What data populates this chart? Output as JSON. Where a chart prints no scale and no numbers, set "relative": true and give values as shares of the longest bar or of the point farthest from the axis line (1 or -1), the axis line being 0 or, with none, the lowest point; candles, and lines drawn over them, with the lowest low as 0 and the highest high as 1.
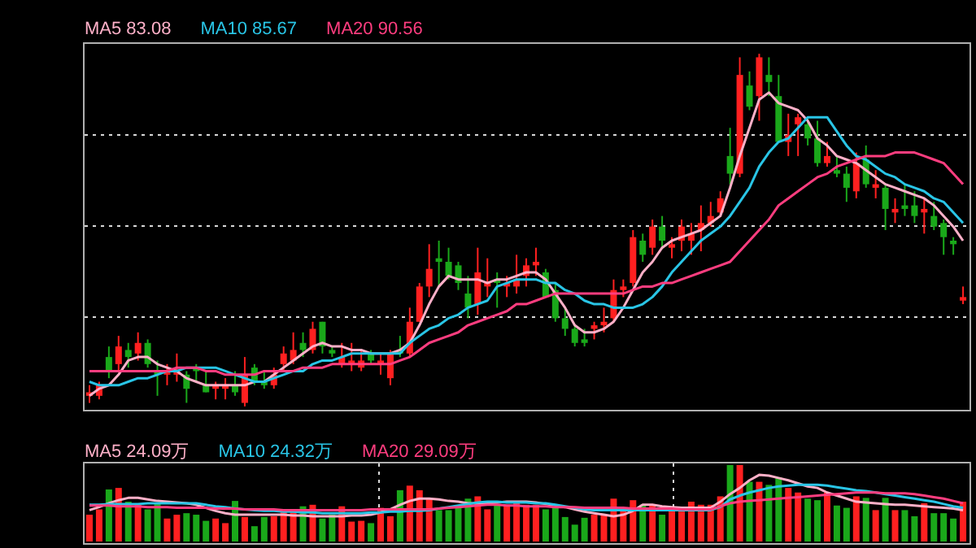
{
  "chart_data": [
    {
      "type": "candlestick",
      "relative": true,
      "tick_labels": false,
      "grid": "y",
      "legend": "top left",
      "categories": [
        null,
        null,
        null,
        null,
        null,
        null,
        null,
        null,
        null,
        null,
        null,
        null,
        null,
        null,
        null,
        null,
        null,
        null,
        null,
        null,
        null,
        null,
        null,
        null,
        null,
        null,
        null,
        null,
        null,
        null,
        null,
        null,
        null,
        null,
        null,
        null,
        null,
        null,
        null,
        null,
        null,
        null,
        null,
        null,
        null,
        null,
        null,
        null,
        null,
        null,
        null,
        null,
        null,
        null,
        null,
        null,
        null,
        null,
        null,
        null,
        null,
        null,
        null,
        null,
        null,
        null,
        null,
        null,
        null,
        null,
        null,
        null,
        null,
        null,
        null,
        null,
        null,
        null,
        null,
        null,
        null,
        null,
        null,
        null,
        null,
        null,
        null,
        null,
        null,
        null,
        null
      ],
      "ohlc": [
        [
          0.03,
          0.06,
          0.01,
          0.04
        ],
        [
          0.03,
          0.07,
          0.02,
          0.06
        ],
        [
          0.14,
          0.17,
          0.08,
          0.1
        ],
        [
          0.12,
          0.2,
          0.1,
          0.17
        ],
        [
          0.16,
          0.18,
          0.11,
          0.14
        ],
        [
          0.15,
          0.21,
          0.13,
          0.18
        ],
        [
          0.18,
          0.19,
          0.11,
          0.12
        ],
        [
          0.1,
          0.13,
          0.03,
          0.09
        ],
        [
          0.09,
          0.12,
          0.06,
          0.1
        ],
        [
          0.09,
          0.15,
          0.07,
          0.1
        ],
        [
          0.09,
          0.1,
          0.01,
          0.05
        ],
        [
          0.11,
          0.12,
          0.07,
          0.1
        ],
        [
          0.06,
          0.1,
          0.04,
          0.04
        ],
        [
          0.05,
          0.07,
          0.02,
          0.06
        ],
        [
          0.05,
          0.08,
          0.02,
          0.06
        ],
        [
          0.06,
          0.1,
          0.03,
          0.04
        ],
        [
          0.01,
          0.14,
          0,
          0.09
        ],
        [
          0.11,
          0.12,
          0.06,
          0.07
        ],
        [
          0.07,
          0.1,
          0.05,
          0.06
        ],
        [
          0.06,
          0.11,
          0.05,
          0.09
        ],
        [
          0.12,
          0.17,
          0.1,
          0.15
        ],
        [
          0.13,
          0.21,
          0.12,
          0.16
        ],
        [
          0.18,
          0.21,
          0.14,
          0.16
        ],
        [
          0.16,
          0.24,
          0.15,
          0.22
        ],
        [
          0.24,
          0.24,
          0.15,
          0.17
        ],
        [
          0.16,
          0.17,
          0.14,
          0.15
        ],
        [
          0.12,
          0.18,
          0.11,
          0.14
        ],
        [
          0.12,
          0.18,
          0.1,
          0.13
        ],
        [
          0.11,
          0.16,
          0.1,
          0.13
        ],
        [
          0.15,
          0.16,
          0.12,
          0.13
        ],
        [
          0.12,
          0.15,
          0.09,
          0.13
        ],
        [
          0.08,
          0.16,
          0.06,
          0.15
        ],
        [
          0.16,
          0.2,
          0.14,
          0.15
        ],
        [
          0.15,
          0.28,
          0.14,
          0.24
        ],
        [
          0.24,
          0.35,
          0.24,
          0.34
        ],
        [
          0.34,
          0.46,
          0.31,
          0.39
        ],
        [
          0.42,
          0.47,
          0.34,
          0.41
        ],
        [
          0.41,
          0.45,
          0.36,
          0.37
        ],
        [
          0.4,
          0.41,
          0.33,
          0.35
        ],
        [
          0.32,
          0.37,
          0.25,
          0.28
        ],
        [
          0.29,
          0.45,
          0.26,
          0.38
        ],
        [
          0.34,
          0.42,
          0.31,
          0.35
        ],
        [
          0.36,
          0.38,
          0.28,
          0.35
        ],
        [
          0.34,
          0.37,
          0.31,
          0.35
        ],
        [
          0.34,
          0.43,
          0.32,
          0.36
        ],
        [
          0.37,
          0.42,
          0.34,
          0.4
        ],
        [
          0.4,
          0.45,
          0.37,
          0.41
        ],
        [
          0.38,
          0.39,
          0.31,
          0.31
        ],
        [
          0.33,
          0.35,
          0.24,
          0.25
        ],
        [
          0.25,
          0.28,
          0.2,
          0.22
        ],
        [
          0.22,
          0.23,
          0.17,
          0.18
        ],
        [
          0.19,
          0.22,
          0.17,
          0.18
        ],
        [
          0.22,
          0.24,
          0.19,
          0.23
        ],
        [
          0.23,
          0.28,
          0.21,
          0.24
        ],
        [
          0.25,
          0.36,
          0.24,
          0.33
        ],
        [
          0.33,
          0.36,
          0.31,
          0.34
        ],
        [
          0.35,
          0.5,
          0.34,
          0.48
        ],
        [
          0.47,
          0.49,
          0.41,
          0.43
        ],
        [
          0.45,
          0.53,
          0.43,
          0.51
        ],
        [
          0.51,
          0.54,
          0.45,
          0.47
        ],
        [
          0.45,
          0.48,
          0.42,
          0.46
        ],
        [
          0.47,
          0.53,
          0.44,
          0.51
        ],
        [
          0.47,
          0.52,
          0.43,
          0.49
        ],
        [
          0.5,
          0.57,
          0.44,
          0.52
        ],
        [
          0.52,
          0.58,
          0.51,
          0.54
        ],
        [
          0.55,
          0.61,
          0.54,
          0.59
        ],
        [
          0.71,
          0.79,
          0.63,
          0.66
        ],
        [
          0.66,
          0.99,
          0.65,
          0.94
        ],
        [
          0.91,
          0.95,
          0.84,
          0.85
        ],
        [
          0.88,
          1,
          0.81,
          0.99
        ],
        [
          0.94,
          0.99,
          0.88,
          0.92
        ],
        [
          0.88,
          0.94,
          0.75,
          0.75
        ],
        [
          0.75,
          0.83,
          0.71,
          0.77
        ],
        [
          0.8,
          0.83,
          0.71,
          0.82
        ],
        [
          0.8,
          0.82,
          0.74,
          0.76
        ],
        [
          0.76,
          0.81,
          0.68,
          0.69
        ],
        [
          0.69,
          0.75,
          0.68,
          0.71
        ],
        [
          0.67,
          0.71,
          0.65,
          0.66
        ],
        [
          0.66,
          0.68,
          0.58,
          0.62
        ],
        [
          0.61,
          0.72,
          0.59,
          0.69
        ],
        [
          0.7,
          0.74,
          0.62,
          0.63
        ],
        [
          0.62,
          0.67,
          0.59,
          0.63
        ],
        [
          0.62,
          0.63,
          0.5,
          0.56
        ],
        [
          0.55,
          0.59,
          0.52,
          0.56
        ],
        [
          0.57,
          0.63,
          0.54,
          0.56
        ],
        [
          0.57,
          0.61,
          0.52,
          0.54
        ],
        [
          0.55,
          0.59,
          0.49,
          0.56
        ],
        [
          0.54,
          0.58,
          0.5,
          0.51
        ],
        [
          0.52,
          0.53,
          0.43,
          0.48
        ],
        [
          0.47,
          0.48,
          0.43,
          0.46
        ],
        [
          0.3,
          0.34,
          0.29,
          0.31
        ]
      ],
      "colors": [
        "#ff2020",
        "#ff2020",
        "#1aa81a",
        "#ff2020",
        "#1aa81a",
        "#ff2020",
        "#1aa81a",
        "#1aa81a",
        "#ff2020",
        "#ff2020",
        "#1aa81a",
        "#1aa81a",
        "#1aa81a",
        "#ff2020",
        "#ff2020",
        "#1aa81a",
        "#ff2020",
        "#1aa81a",
        "#1aa81a",
        "#ff2020",
        "#ff2020",
        "#ff2020",
        "#1aa81a",
        "#ff2020",
        "#1aa81a",
        "#1aa81a",
        "#ff2020",
        "#ff2020",
        "#ff2020",
        "#1aa81a",
        "#ff2020",
        "#ff2020",
        "#1aa81a",
        "#ff2020",
        "#ff2020",
        "#ff2020",
        "#1aa81a",
        "#1aa81a",
        "#1aa81a",
        "#1aa81a",
        "#ff2020",
        "#ff2020",
        "#1aa81a",
        "#ff2020",
        "#ff2020",
        "#ff2020",
        "#ff2020",
        "#1aa81a",
        "#1aa81a",
        "#1aa81a",
        "#1aa81a",
        "#1aa81a",
        "#ff2020",
        "#ff2020",
        "#ff2020",
        "#ff2020",
        "#ff2020",
        "#1aa81a",
        "#ff2020",
        "#1aa81a",
        "#ff2020",
        "#ff2020",
        "#ff2020",
        "#ff2020",
        "#ff2020",
        "#ff2020",
        "#1aa81a",
        "#ff2020",
        "#1aa81a",
        "#ff2020",
        "#1aa81a",
        "#1aa81a",
        "#ff2020",
        "#ff2020",
        "#1aa81a",
        "#1aa81a",
        "#ff2020",
        "#1aa81a",
        "#1aa81a",
        "#ff2020",
        "#1aa81a",
        "#ff2020",
        "#1aa81a",
        "#ff2020",
        "#1aa81a",
        "#1aa81a",
        "#ff2020",
        "#1aa81a",
        "#1aa81a",
        "#1aa81a",
        "#ff2020"
      ],
      "series": [
        {
          "type": "line",
          "name": "MA5 83.08",
          "color": "#ffb0c8",
          "values": [
            0.03,
            0.05,
            0.06,
            0.09,
            0.13,
            0.14,
            0.14,
            0.12,
            0.11,
            0.1,
            0.08,
            0.07,
            0.06,
            0.06,
            0.06,
            0.06,
            0.06,
            0.07,
            0.07,
            0.09,
            0.11,
            0.13,
            0.15,
            0.17,
            0.18,
            0.17,
            0.17,
            0.16,
            0.16,
            0.15,
            0.15,
            0.15,
            0.16,
            0.18,
            0.23,
            0.29,
            0.34,
            0.37,
            0.36,
            0.36,
            0.36,
            0.35,
            0.36,
            0.36,
            0.37,
            0.38,
            0.38,
            0.36,
            0.32,
            0.28,
            0.23,
            0.21,
            0.21,
            0.22,
            0.24,
            0.28,
            0.33,
            0.38,
            0.41,
            0.45,
            0.47,
            0.48,
            0.49,
            0.5,
            0.52,
            0.54,
            0.62,
            0.71,
            0.79,
            0.87,
            0.89,
            0.86,
            0.85,
            0.84,
            0.81,
            0.76,
            0.74,
            0.71,
            0.7,
            0.69,
            0.67,
            0.65,
            0.63,
            0.62,
            0.61,
            0.6,
            0.59,
            0.57,
            0.54,
            0.51,
            0.47
          ]
        },
        {
          "type": "line",
          "name": "MA10 85.67",
          "color": "#29c5e6",
          "values": [
            0.07,
            0.06,
            0.06,
            0.06,
            0.07,
            0.08,
            0.08,
            0.09,
            0.1,
            0.1,
            0.11,
            0.11,
            0.11,
            0.11,
            0.1,
            0.09,
            0.08,
            0.07,
            0.07,
            0.08,
            0.09,
            0.1,
            0.1,
            0.12,
            0.13,
            0.13,
            0.14,
            0.15,
            0.15,
            0.15,
            0.15,
            0.15,
            0.15,
            0.18,
            0.2,
            0.22,
            0.23,
            0.25,
            0.26,
            0.28,
            0.29,
            0.3,
            0.34,
            0.35,
            0.36,
            0.36,
            0.36,
            0.35,
            0.35,
            0.33,
            0.32,
            0.3,
            0.29,
            0.29,
            0.28,
            0.28,
            0.28,
            0.29,
            0.31,
            0.34,
            0.38,
            0.41,
            0.44,
            0.47,
            0.49,
            0.51,
            0.54,
            0.58,
            0.62,
            0.68,
            0.72,
            0.75,
            0.76,
            0.79,
            0.82,
            0.82,
            0.82,
            0.78,
            0.74,
            0.71,
            0.7,
            0.68,
            0.66,
            0.65,
            0.63,
            0.62,
            0.61,
            0.59,
            0.58,
            0.55,
            0.52
          ]
        },
        {
          "type": "line",
          "name": "MA20 90.56",
          "color": "#ff3d7f",
          "values": [
            0.1,
            0.1,
            0.1,
            0.1,
            0.1,
            0.1,
            0.1,
            0.1,
            0.1,
            0.11,
            0.11,
            0.11,
            0.1,
            0.1,
            0.09,
            0.09,
            0.09,
            0.09,
            0.1,
            0.1,
            0.1,
            0.1,
            0.11,
            0.11,
            0.11,
            0.12,
            0.12,
            0.12,
            0.12,
            0.12,
            0.12,
            0.12,
            0.13,
            0.14,
            0.16,
            0.18,
            0.19,
            0.2,
            0.21,
            0.23,
            0.24,
            0.25,
            0.26,
            0.27,
            0.29,
            0.29,
            0.3,
            0.31,
            0.32,
            0.32,
            0.32,
            0.32,
            0.32,
            0.32,
            0.32,
            0.32,
            0.33,
            0.34,
            0.34,
            0.35,
            0.35,
            0.36,
            0.37,
            0.38,
            0.39,
            0.4,
            0.41,
            0.44,
            0.47,
            0.5,
            0.53,
            0.57,
            0.59,
            0.61,
            0.63,
            0.65,
            0.66,
            0.68,
            0.69,
            0.7,
            0.71,
            0.71,
            0.71,
            0.72,
            0.72,
            0.72,
            0.71,
            0.7,
            0.69,
            0.66,
            0.63
          ]
        }
      ]
    },
    {
      "type": "bar",
      "relative": true,
      "tick_labels": false,
      "grid": "x",
      "legend": "top left",
      "categories": [
        null,
        null,
        null,
        null,
        null,
        null,
        null,
        null,
        null,
        null,
        null,
        null,
        null,
        null,
        null,
        null,
        null,
        null,
        null,
        null,
        null,
        null,
        null,
        null,
        null,
        null,
        null,
        null,
        null,
        null,
        null,
        null,
        null,
        null,
        null,
        null,
        null,
        null,
        null,
        null,
        null,
        null,
        null,
        null,
        null,
        null,
        null,
        null,
        null,
        null,
        null,
        null,
        null,
        null,
        null,
        null,
        null,
        null,
        null,
        null,
        null,
        null,
        null,
        null,
        null,
        null,
        null,
        null,
        null,
        null,
        null,
        null,
        null,
        null,
        null,
        null,
        null,
        null,
        null,
        null,
        null,
        null,
        null,
        null,
        null,
        null,
        null,
        null,
        null,
        null,
        null
      ],
      "values": [
        0.35,
        0.42,
        0.68,
        0.7,
        0.52,
        0.5,
        0.42,
        0.5,
        0.3,
        0.35,
        0.37,
        0.35,
        0.27,
        0.3,
        0.24,
        0.53,
        0.32,
        0.2,
        0.32,
        0.33,
        0.42,
        0.41,
        0.46,
        0.48,
        0.3,
        0.35,
        0.46,
        0.26,
        0.27,
        0.24,
        0.44,
        0.33,
        0.67,
        0.73,
        0.67,
        0.56,
        0.41,
        0.41,
        0.44,
        0.56,
        0.59,
        0.42,
        0.48,
        0.48,
        0.5,
        0.48,
        0.48,
        0.42,
        0.47,
        0.32,
        0.22,
        0.31,
        0.35,
        0.35,
        0.56,
        0.41,
        0.54,
        0.48,
        0.48,
        0.35,
        0.41,
        0.41,
        0.52,
        0.48,
        0.48,
        0.59,
        1,
        1,
        0.78,
        0.78,
        0.74,
        0.84,
        0.7,
        0.64,
        0.56,
        0.54,
        0.64,
        0.47,
        0.44,
        0.59,
        0.57,
        0.41,
        0.57,
        0.41,
        0.41,
        0.33,
        0.5,
        0.37,
        0.37,
        0.3,
        0.52
      ],
      "colors": [
        "#ff2020",
        "#ff2020",
        "#1aa81a",
        "#ff2020",
        "#1aa81a",
        "#ff2020",
        "#1aa81a",
        "#1aa81a",
        "#ff2020",
        "#ff2020",
        "#1aa81a",
        "#1aa81a",
        "#1aa81a",
        "#ff2020",
        "#ff2020",
        "#1aa81a",
        "#ff2020",
        "#1aa81a",
        "#1aa81a",
        "#ff2020",
        "#ff2020",
        "#ff2020",
        "#1aa81a",
        "#ff2020",
        "#1aa81a",
        "#1aa81a",
        "#ff2020",
        "#ff2020",
        "#ff2020",
        "#1aa81a",
        "#ff2020",
        "#ff2020",
        "#1aa81a",
        "#ff2020",
        "#ff2020",
        "#ff2020",
        "#1aa81a",
        "#1aa81a",
        "#1aa81a",
        "#1aa81a",
        "#ff2020",
        "#ff2020",
        "#1aa81a",
        "#ff2020",
        "#ff2020",
        "#ff2020",
        "#ff2020",
        "#1aa81a",
        "#1aa81a",
        "#1aa81a",
        "#1aa81a",
        "#1aa81a",
        "#ff2020",
        "#ff2020",
        "#ff2020",
        "#ff2020",
        "#ff2020",
        "#1aa81a",
        "#ff2020",
        "#1aa81a",
        "#ff2020",
        "#ff2020",
        "#ff2020",
        "#ff2020",
        "#ff2020",
        "#ff2020",
        "#1aa81a",
        "#ff2020",
        "#1aa81a",
        "#ff2020",
        "#1aa81a",
        "#1aa81a",
        "#ff2020",
        "#ff2020",
        "#1aa81a",
        "#1aa81a",
        "#ff2020",
        "#1aa81a",
        "#1aa81a",
        "#ff2020",
        "#1aa81a",
        "#ff2020",
        "#1aa81a",
        "#ff2020",
        "#1aa81a",
        "#1aa81a",
        "#ff2020",
        "#1aa81a",
        "#1aa81a",
        "#1aa81a",
        "#ff2020"
      ],
      "series": [
        {
          "type": "line",
          "name": "MA5 24.09万",
          "color": "#ffb0c8",
          "values": [
            0.41,
            0.45,
            0.5,
            0.54,
            0.57,
            0.57,
            0.55,
            0.53,
            0.52,
            0.51,
            0.5,
            0.48,
            0.44,
            0.4,
            0.37,
            0.35,
            0.35,
            0.35,
            0.35,
            0.35,
            0.35,
            0.34,
            0.34,
            0.33,
            0.33,
            0.33,
            0.33,
            0.34,
            0.34,
            0.35,
            0.38,
            0.42,
            0.48,
            0.53,
            0.56,
            0.56,
            0.55,
            0.53,
            0.52,
            0.5,
            0.5,
            0.5,
            0.51,
            0.52,
            0.52,
            0.52,
            0.51,
            0.49,
            0.47,
            0.45,
            0.42,
            0.39,
            0.37,
            0.35,
            0.33,
            0.35,
            0.4,
            0.48,
            0.48,
            0.46,
            0.45,
            0.44,
            0.44,
            0.44,
            0.44,
            0.52,
            0.62,
            0.7,
            0.8,
            0.87,
            0.86,
            0.83,
            0.8,
            0.76,
            0.72,
            0.7,
            0.64,
            0.6,
            0.56,
            0.52,
            0.51,
            0.5,
            0.49,
            0.48,
            0.48,
            0.47,
            0.46,
            0.45,
            0.44,
            0.43,
            0.41
          ]
        },
        {
          "type": "line",
          "name": "MA10 24.32万",
          "color": "#29c5e6",
          "values": [
            0.48,
            0.48,
            0.49,
            0.49,
            0.49,
            0.49,
            0.5,
            0.5,
            0.5,
            0.5,
            0.5,
            0.5,
            0.48,
            0.46,
            0.45,
            0.43,
            0.42,
            0.41,
            0.4,
            0.4,
            0.39,
            0.39,
            0.38,
            0.38,
            0.37,
            0.37,
            0.37,
            0.37,
            0.37,
            0.38,
            0.38,
            0.39,
            0.39,
            0.4,
            0.4,
            0.41,
            0.43,
            0.45,
            0.47,
            0.49,
            0.51,
            0.52,
            0.52,
            0.51,
            0.51,
            0.51,
            0.5,
            0.5,
            0.48,
            0.46,
            0.44,
            0.42,
            0.41,
            0.41,
            0.41,
            0.41,
            0.41,
            0.41,
            0.41,
            0.41,
            0.41,
            0.41,
            0.41,
            0.41,
            0.41,
            0.45,
            0.55,
            0.6,
            0.64,
            0.67,
            0.7,
            0.72,
            0.73,
            0.74,
            0.74,
            0.74,
            0.73,
            0.71,
            0.69,
            0.67,
            0.66,
            0.64,
            0.62,
            0.6,
            0.58,
            0.56,
            0.54,
            0.52,
            0.49,
            0.46,
            0.44
          ]
        },
        {
          "type": "line",
          "name": "MA20 29.09万",
          "color": "#ff3d7f",
          "values": [
            0.47,
            0.47,
            0.47,
            0.46,
            0.46,
            0.46,
            0.45,
            0.45,
            0.45,
            0.44,
            0.44,
            0.44,
            0.44,
            0.43,
            0.43,
            0.43,
            0.42,
            0.42,
            0.42,
            0.42,
            0.41,
            0.41,
            0.41,
            0.41,
            0.41,
            0.41,
            0.41,
            0.41,
            0.41,
            0.42,
            0.42,
            0.42,
            0.42,
            0.42,
            0.42,
            0.42,
            0.43,
            0.44,
            0.45,
            0.46,
            0.47,
            0.48,
            0.48,
            0.47,
            0.47,
            0.46,
            0.46,
            0.46,
            0.45,
            0.45,
            0.45,
            0.44,
            0.44,
            0.44,
            0.44,
            0.44,
            0.43,
            0.43,
            0.43,
            0.43,
            0.43,
            0.42,
            0.42,
            0.42,
            0.42,
            0.46,
            0.5,
            0.52,
            0.53,
            0.54,
            0.55,
            0.56,
            0.57,
            0.58,
            0.59,
            0.6,
            0.61,
            0.62,
            0.63,
            0.64,
            0.64,
            0.64,
            0.63,
            0.63,
            0.63,
            0.62,
            0.6,
            0.58,
            0.56,
            0.53,
            0.5
          ]
        }
      ]
    }
  ]
}
